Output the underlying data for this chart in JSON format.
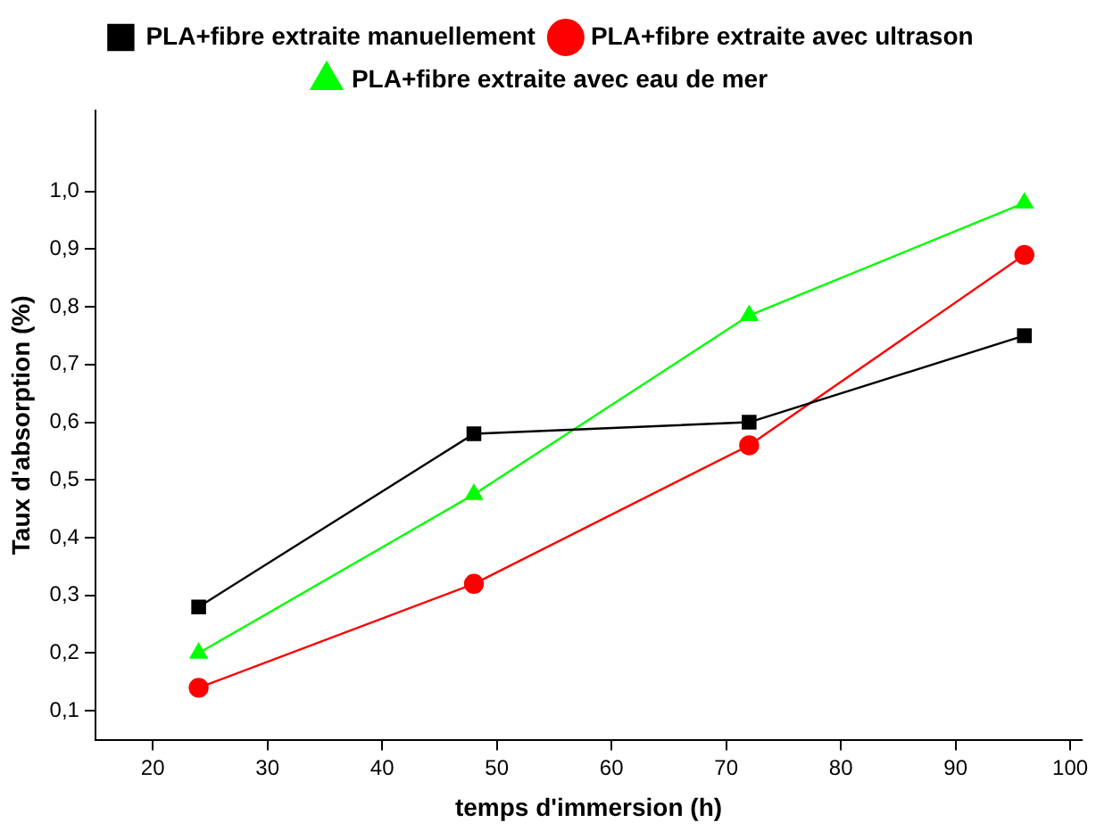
{
  "chart_data": {
    "type": "line",
    "xlabel": "temps d'immersion (h)",
    "ylabel": "Taux d'absorption (%)",
    "x": [
      24,
      48,
      72,
      96
    ],
    "series": [
      {
        "name": "PLA+fibre extraite manuellement",
        "color": "#000000",
        "marker": "square",
        "values": [
          0.28,
          0.58,
          0.6,
          0.75
        ]
      },
      {
        "name": "PLA+fibre extraite avec ultrason",
        "color": "#ff0000",
        "marker": "circle",
        "values": [
          0.14,
          0.32,
          0.56,
          0.89
        ]
      },
      {
        "name": "PLA+fibre extraite avec eau de mer",
        "color": "#00ff00",
        "marker": "triangle",
        "values": [
          0.2,
          0.475,
          0.785,
          0.98
        ]
      }
    ],
    "xlim": [
      15,
      101
    ],
    "xticks": [
      20,
      30,
      40,
      50,
      60,
      70,
      80,
      90,
      100
    ],
    "ylim": [
      0.05,
      1.14
    ],
    "yticks": [
      {
        "value": 0.1,
        "label": "0,1"
      },
      {
        "value": 0.2,
        "label": "0,2"
      },
      {
        "value": 0.3,
        "label": "0,3"
      },
      {
        "value": 0.4,
        "label": "0,4"
      },
      {
        "value": 0.5,
        "label": "0,5"
      },
      {
        "value": 0.6,
        "label": "0,6"
      },
      {
        "value": 0.7,
        "label": "0,7"
      },
      {
        "value": 0.8,
        "label": "0,8"
      },
      {
        "value": 0.9,
        "label": "0,9"
      },
      {
        "value": 1.0,
        "label": "1,0"
      }
    ],
    "grid": false,
    "legend": "top",
    "line_style": "solid"
  }
}
